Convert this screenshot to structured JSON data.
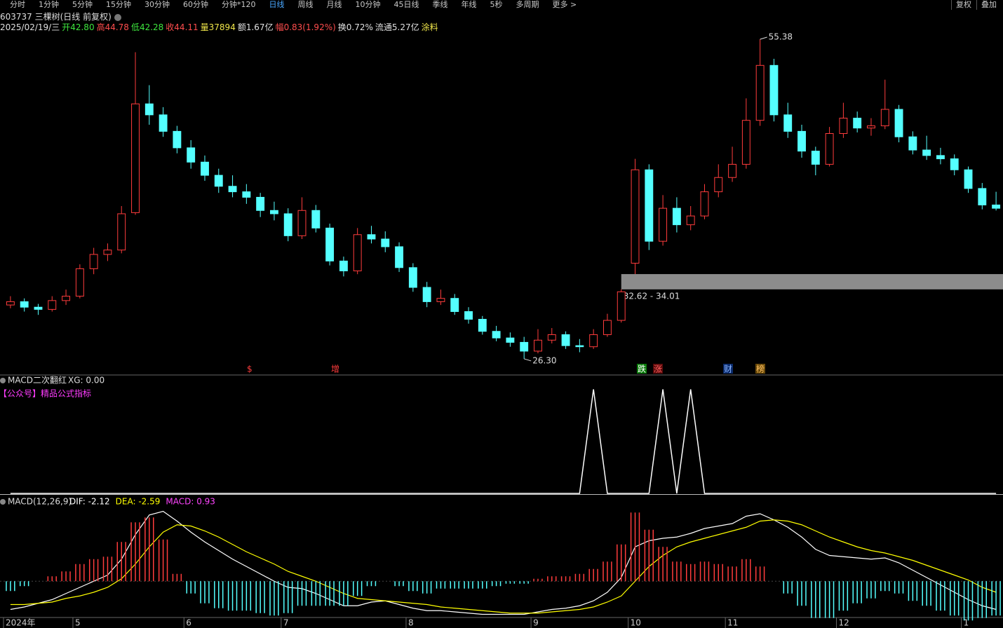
{
  "toolbar": {
    "tabs": [
      "分时",
      "1分钟",
      "5分钟",
      "15分钟",
      "30分钟",
      "60分钟",
      "分钟*120",
      "日线",
      "周线",
      "月线",
      "10分钟",
      "45日线",
      "季线",
      "年线",
      "5秒",
      "多周期",
      "更多 >"
    ],
    "active_tab_index": 7,
    "right": [
      "复权",
      "叠加"
    ]
  },
  "quote": [
    "2025/02/19/三",
    "开42.80",
    "高44.78",
    "低42.28",
    "收44.11",
    "量37894",
    "额1.67亿",
    "幅0.83(1.92%)",
    "换0.72%",
    "流通5.27亿",
    "涂料"
  ],
  "chart_data": [
    {
      "type": "candlestick",
      "title": "603737 三棵树(日线 前复权)",
      "open": [
        31.2,
        31.5,
        31.0,
        30.8,
        31.6,
        32.0,
        34.5,
        35.8,
        36.2,
        39.6,
        49.5,
        48.5,
        47.0,
        45.5,
        44.2,
        43.0,
        42.0,
        41.5,
        41.0,
        39.8,
        39.5,
        37.5,
        39.8,
        38.2,
        35.2,
        34.3,
        37.6,
        37.2,
        36.5,
        34.6,
        32.8,
        31.5,
        31.8,
        30.6,
        29.9,
        28.8,
        28.2,
        27.8,
        27.0,
        28.0,
        28.5,
        27.5,
        27.4,
        28.5,
        29.8,
        35.0,
        43.5,
        37.0,
        40.0,
        38.5,
        39.3,
        41.5,
        42.8,
        44.0,
        48.0,
        53.0,
        48.5,
        47.0,
        45.2,
        44.0,
        46.8,
        48.2,
        47.3,
        47.5,
        49.0,
        46.5,
        45.3,
        44.8,
        44.5,
        43.5,
        41.8,
        40.3
      ],
      "high": [
        32.0,
        31.8,
        31.3,
        32.0,
        32.6,
        34.9,
        36.4,
        36.8,
        40.2,
        54.2,
        51.2,
        49.2,
        47.5,
        46.2,
        44.8,
        43.6,
        43.0,
        42.2,
        41.4,
        40.6,
        40.0,
        41.0,
        40.3,
        38.6,
        35.6,
        38.2,
        38.4,
        37.9,
        36.9,
        35.0,
        33.3,
        32.6,
        32.2,
        31.0,
        30.2,
        29.3,
        28.7,
        28.3,
        29.0,
        29.1,
        28.8,
        28.1,
        29.0,
        30.4,
        32.62,
        44.5,
        44.0,
        41.2,
        41.0,
        40.2,
        42.2,
        44.0,
        45.6,
        50.0,
        55.38,
        53.6,
        49.6,
        47.6,
        45.6,
        47.4,
        49.6,
        48.8,
        48.2,
        51.7,
        49.4,
        47.0,
        46.6,
        45.5,
        44.9,
        43.8,
        42.3,
        41.5
      ],
      "low": [
        30.9,
        30.6,
        30.3,
        30.6,
        31.2,
        31.8,
        34.0,
        35.2,
        35.9,
        39.4,
        47.6,
        46.5,
        45.0,
        43.6,
        42.5,
        41.4,
        41.0,
        40.4,
        39.2,
        38.9,
        37.0,
        37.2,
        37.8,
        34.8,
        33.8,
        34.0,
        36.8,
        36.0,
        34.2,
        32.4,
        31.0,
        31.2,
        30.3,
        29.5,
        28.5,
        27.9,
        27.4,
        26.3,
        26.8,
        27.7,
        27.2,
        26.9,
        27.2,
        28.3,
        29.6,
        34.01,
        36.2,
        36.6,
        37.8,
        38.0,
        39.0,
        41.0,
        42.4,
        43.6,
        47.5,
        47.9,
        46.4,
        44.6,
        43.0,
        43.8,
        46.4,
        46.9,
        46.6,
        47.2,
        46.0,
        44.9,
        44.4,
        44.0,
        43.0,
        41.4,
        39.9,
        39.8
      ],
      "close": [
        31.5,
        31.0,
        30.8,
        31.6,
        32.0,
        34.5,
        35.8,
        36.2,
        39.5,
        49.5,
        48.5,
        47.0,
        45.5,
        44.2,
        43.0,
        42.0,
        41.5,
        41.0,
        39.8,
        39.5,
        37.5,
        39.8,
        38.2,
        35.2,
        34.3,
        37.6,
        37.2,
        36.5,
        34.6,
        32.8,
        31.5,
        31.8,
        30.6,
        29.9,
        28.8,
        28.2,
        27.8,
        27.0,
        28.0,
        28.5,
        27.5,
        27.4,
        28.5,
        29.8,
        32.4,
        43.5,
        37.0,
        40.0,
        38.5,
        39.3,
        41.5,
        42.8,
        44.0,
        48.0,
        53.0,
        48.5,
        47.0,
        45.2,
        44.0,
        46.8,
        48.2,
        47.3,
        47.5,
        49.0,
        46.5,
        45.3,
        44.8,
        44.5,
        43.5,
        41.8,
        40.3,
        40.0
      ],
      "up_color": "#ff3c3c",
      "down_color": "#54ffff",
      "ylim": [
        24.83,
        58.95
      ],
      "annotations": [
        {
          "field": "high",
          "value": 55.38,
          "label": "55.38"
        },
        {
          "field": "low",
          "value": 26.3,
          "label": "26.30"
        }
      ],
      "gap": {
        "low": 32.62,
        "high": 34.01,
        "label": "32.62 - 34.01",
        "color": "#8c8c8c"
      },
      "events": [
        "$",
        "增",
        "跌",
        "涨",
        "财",
        "榜"
      ]
    },
    {
      "type": "line",
      "title": "MACD二次翻红",
      "subtitle": "XG: 0.00",
      "note": "【公众号】精品公式指标",
      "series": [
        {
          "color": "#ffffff",
          "values": [
            0,
            0,
            0,
            0,
            0,
            0,
            0,
            0,
            0,
            0,
            0,
            0,
            0,
            0,
            0,
            0,
            0,
            0,
            0,
            0,
            0,
            0,
            0,
            0,
            0,
            0,
            0,
            0,
            0,
            0,
            0,
            0,
            0,
            0,
            0,
            0,
            0,
            0,
            0,
            0,
            0,
            0,
            1,
            0,
            0,
            0,
            0,
            1,
            0,
            1,
            0,
            0,
            0,
            0,
            0,
            0,
            0,
            0,
            0,
            0,
            0,
            0,
            0,
            0,
            0,
            0,
            0,
            0,
            0,
            0,
            0,
            0
          ]
        }
      ],
      "ylim": [
        0,
        1.05
      ]
    },
    {
      "type": "macd",
      "title": "MACD(12,26,9)",
      "categories": [
        "2024年",
        null,
        null,
        null,
        null,
        "5",
        null,
        null,
        null,
        null,
        null,
        null,
        null,
        "6",
        null,
        null,
        null,
        null,
        null,
        null,
        "7",
        null,
        null,
        null,
        null,
        null,
        null,
        null,
        null,
        "8",
        null,
        null,
        null,
        null,
        null,
        null,
        null,
        null,
        "9",
        null,
        null,
        null,
        null,
        null,
        null,
        "10",
        null,
        null,
        null,
        null,
        null,
        null,
        "11",
        null,
        null,
        null,
        null,
        null,
        null,
        null,
        "12",
        null,
        null,
        null,
        null,
        null,
        null,
        null,
        null,
        "1",
        null,
        null
      ],
      "series": [
        {
          "name": "DIF: -2.12",
          "type": "line",
          "color": "#ffffff",
          "values": [
            -2.3,
            -2.1,
            -1.8,
            -1.5,
            -1.0,
            -0.5,
            0.0,
            0.5,
            1.8,
            3.8,
            5.4,
            5.7,
            4.9,
            4.0,
            3.2,
            2.5,
            1.8,
            1.2,
            0.6,
            0.0,
            -0.5,
            -0.6,
            -1.0,
            -1.5,
            -2.0,
            -2.0,
            -1.7,
            -1.6,
            -1.9,
            -2.2,
            -2.4,
            -2.4,
            -2.5,
            -2.6,
            -2.7,
            -2.7,
            -2.7,
            -2.7,
            -2.5,
            -2.3,
            -2.2,
            -2.0,
            -1.6,
            -0.9,
            0.3,
            2.8,
            3.3,
            3.5,
            3.6,
            3.9,
            4.3,
            4.5,
            4.7,
            5.3,
            5.5,
            5.0,
            4.4,
            3.6,
            2.6,
            2.1,
            2.0,
            1.9,
            1.8,
            1.9,
            1.5,
            0.9,
            0.3,
            -0.3,
            -0.9,
            -1.5,
            -2.0,
            -2.3
          ]
        },
        {
          "name": "DEA: -2.59",
          "type": "line",
          "color": "#ffff00",
          "values": [
            -1.9,
            -1.9,
            -1.8,
            -1.7,
            -1.4,
            -1.2,
            -0.9,
            -0.5,
            0.2,
            1.4,
            2.8,
            4.0,
            4.6,
            4.5,
            4.1,
            3.6,
            3.0,
            2.4,
            1.9,
            1.4,
            0.8,
            0.4,
            0.0,
            -0.5,
            -1.0,
            -1.4,
            -1.5,
            -1.6,
            -1.7,
            -1.8,
            -1.9,
            -2.1,
            -2.2,
            -2.3,
            -2.4,
            -2.5,
            -2.6,
            -2.6,
            -2.6,
            -2.5,
            -2.4,
            -2.3,
            -2.1,
            -1.7,
            -1.2,
            0.0,
            1.2,
            2.1,
            2.8,
            3.2,
            3.5,
            3.8,
            4.1,
            4.4,
            4.9,
            5.0,
            4.9,
            4.6,
            4.1,
            3.6,
            3.2,
            2.8,
            2.5,
            2.3,
            2.0,
            1.7,
            1.3,
            0.9,
            0.5,
            0.1,
            -0.5,
            -0.9
          ]
        },
        {
          "name": "MACD: 0.93",
          "type": "bar",
          "color": "#ff44ff",
          "up_color": "#ff3c3c",
          "down_color": "#54ffff",
          "values": [
            -0.8,
            -0.4,
            0.0,
            0.4,
            0.8,
            1.4,
            1.8,
            2.0,
            3.2,
            4.8,
            5.2,
            3.4,
            0.6,
            -1.0,
            -1.8,
            -2.2,
            -2.4,
            -2.4,
            -2.6,
            -2.8,
            -2.6,
            -2.0,
            -2.0,
            -2.0,
            -2.0,
            -1.2,
            -0.4,
            0.0,
            -0.4,
            -0.8,
            -1.0,
            -0.6,
            -0.6,
            -0.6,
            -0.6,
            -0.4,
            -0.2,
            -0.2,
            0.2,
            0.4,
            0.4,
            0.6,
            1.0,
            1.6,
            3.0,
            5.6,
            4.2,
            2.8,
            1.6,
            1.4,
            1.6,
            1.4,
            1.2,
            1.8,
            1.2,
            0.0,
            -1.0,
            -2.0,
            -3.0,
            -3.0,
            -2.4,
            -1.8,
            -1.4,
            -0.8,
            -1.0,
            -1.6,
            -2.0,
            -2.4,
            -2.8,
            -3.2,
            -3.0,
            -2.8
          ]
        }
      ],
      "ylim": [
        -2.9,
        6.3
      ]
    }
  ]
}
